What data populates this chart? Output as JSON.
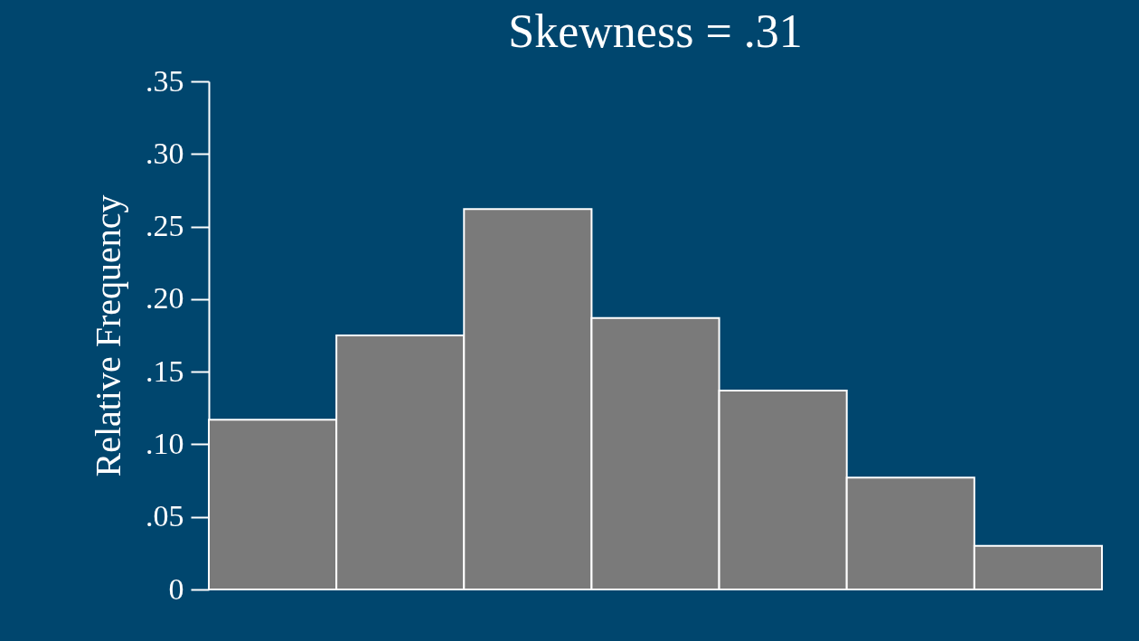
{
  "chart_data": {
    "type": "bar",
    "title": "Skewness  =  .31",
    "ylabel": "Relative Frequency",
    "categories": [
      null,
      null,
      null,
      null,
      null,
      null,
      null
    ],
    "values": [
      0.117,
      0.175,
      0.262,
      0.187,
      0.137,
      0.077,
      0.03
    ],
    "color": "#7a7a7a",
    "ylim": [
      0,
      0.35
    ],
    "yticks": [
      0,
      {
        "value": 0.05,
        "label": ".05"
      },
      {
        "value": 0.1,
        "label": ".10"
      },
      {
        "value": 0.15,
        "label": ".15"
      },
      {
        "value": 0.2,
        "label": ".20"
      },
      {
        "value": 0.25,
        "label": ".25"
      },
      {
        "value": 0.3,
        "label": ".30"
      },
      {
        "value": 0.35,
        "label": ".35"
      }
    ],
    "tick_labels": "y"
  }
}
